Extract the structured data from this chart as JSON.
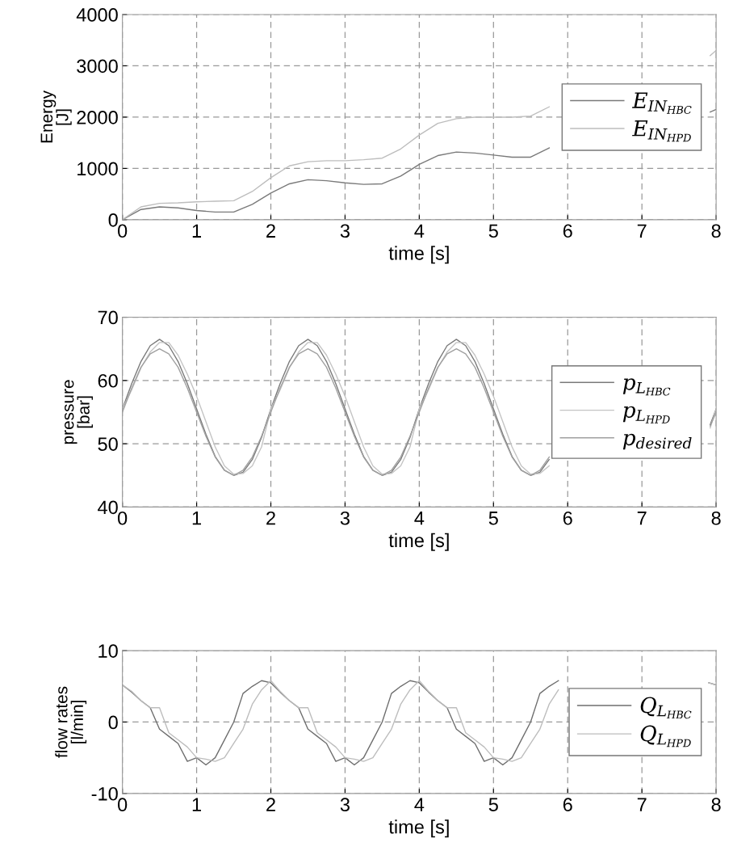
{
  "chart_data": [
    {
      "type": "line",
      "xlabel": "time [s]",
      "ylabel": "Energy\n[J]",
      "xlim": [
        0,
        8
      ],
      "ylim": [
        0,
        4000
      ],
      "xticks": [
        0,
        1,
        2,
        3,
        4,
        5,
        6,
        7,
        8
      ],
      "yticks": [
        0,
        1000,
        2000,
        3000,
        4000
      ],
      "grid": true,
      "legend": "right",
      "line_style": "solid",
      "x": [
        0,
        0.25,
        0.5,
        0.75,
        1,
        1.25,
        1.5,
        1.75,
        2,
        2.25,
        2.5,
        2.75,
        3,
        3.25,
        3.5,
        3.75,
        4,
        4.25,
        4.5,
        4.75,
        5,
        5.25,
        5.5,
        5.75,
        6,
        7.92,
        8
      ],
      "series": [
        {
          "name": "E$_{IN}$$_{HBC}$",
          "color": "#7a7a7a",
          "values": [
            0,
            200,
            250,
            230,
            180,
            150,
            150,
            300,
            520,
            700,
            780,
            760,
            720,
            690,
            700,
            850,
            1080,
            1250,
            1320,
            1300,
            1260,
            1220,
            1220,
            1400,
            null,
            2100,
            2150
          ]
        },
        {
          "name": "E$_{IN}$$_{HPD}$",
          "color": "#bdbdbd",
          "values": [
            0,
            250,
            320,
            330,
            350,
            360,
            370,
            550,
            820,
            1050,
            1130,
            1150,
            1150,
            1170,
            1200,
            1380,
            1650,
            1880,
            1970,
            2000,
            2000,
            2000,
            2020,
            2200,
            null,
            3200,
            3300
          ]
        }
      ]
    },
    {
      "type": "line",
      "xlabel": "time [s]",
      "ylabel": "pressure\n[bar]",
      "xlim": [
        0,
        8
      ],
      "ylim": [
        40,
        70
      ],
      "xticks": [
        0,
        1,
        2,
        3,
        4,
        5,
        6,
        7,
        8
      ],
      "yticks": [
        40,
        50,
        60,
        70
      ],
      "grid": true,
      "legend": "right",
      "line_style": "solid",
      "x": [
        0,
        0.125,
        0.25,
        0.375,
        0.5,
        0.625,
        0.75,
        0.875,
        1,
        1.125,
        1.25,
        1.375,
        1.5,
        1.625,
        1.75,
        1.875,
        2,
        2.125,
        2.25,
        2.375,
        2.5,
        2.625,
        2.75,
        2.875,
        3,
        3.125,
        3.25,
        3.375,
        3.5,
        3.625,
        3.75,
        3.875,
        4,
        4.125,
        4.25,
        4.375,
        4.5,
        4.625,
        4.75,
        4.875,
        5,
        5.125,
        5.25,
        5.375,
        5.5,
        5.625,
        5.75,
        5.9,
        7.92,
        8
      ],
      "series": [
        {
          "name": "p$_{L}$$_{HBC}$",
          "color": "#7a7a7a",
          "values": [
            55.5,
            59.5,
            63,
            65.5,
            66.5,
            65.5,
            63,
            59.5,
            55.5,
            51.5,
            48,
            45.8,
            45,
            45.5,
            47.5,
            51,
            55.5,
            59.5,
            63,
            65.5,
            66.5,
            65.5,
            63,
            59.5,
            55.5,
            51.5,
            48,
            45.8,
            45,
            45.5,
            47.5,
            51,
            55.5,
            59.5,
            63,
            65.5,
            66.5,
            65.5,
            63,
            59.5,
            55.5,
            51.5,
            48,
            45.8,
            45,
            45.5,
            47.5,
            null,
            53,
            55.5
          ]
        },
        {
          "name": "p$_{L}$$_{HPD}$",
          "color": "#c4c4c4",
          "values": [
            55.5,
            58.5,
            62,
            64.5,
            66,
            66,
            64,
            61,
            57.5,
            53.5,
            49.5,
            46.5,
            45.2,
            45.3,
            46.5,
            49.5,
            55.5,
            58.5,
            62,
            64.5,
            66,
            66,
            64,
            61,
            57.5,
            53.5,
            49.5,
            46.5,
            45.2,
            45.3,
            46.5,
            49.5,
            55.5,
            58.5,
            62,
            64.5,
            66,
            66,
            64,
            61,
            57.5,
            53.5,
            49.5,
            46.5,
            45.2,
            45.3,
            46.5,
            null,
            52.5,
            55.5
          ]
        },
        {
          "name": "p$_{desired}$",
          "color": "#a0a0a0",
          "values": [
            55,
            58.8,
            62.1,
            64.2,
            65,
            64.2,
            62.1,
            58.8,
            55,
            51.2,
            47.9,
            45.8,
            45,
            45.8,
            47.9,
            51.2,
            55,
            58.8,
            62.1,
            64.2,
            65,
            64.2,
            62.1,
            58.8,
            55,
            51.2,
            47.9,
            45.8,
            45,
            45.8,
            47.9,
            51.2,
            55,
            58.8,
            62.1,
            64.2,
            65,
            64.2,
            62.1,
            58.8,
            55,
            51.2,
            47.9,
            45.8,
            45,
            45.8,
            47.9,
            null,
            52.8,
            55
          ]
        }
      ]
    },
    {
      "type": "line",
      "xlabel": "time [s]",
      "ylabel": "flow rates\n[l/min]",
      "xlim": [
        0,
        8
      ],
      "ylim": [
        -10,
        10
      ],
      "xticks": [
        0,
        1,
        2,
        3,
        4,
        5,
        6,
        7,
        8
      ],
      "yticks": [
        -10,
        0,
        10
      ],
      "grid": true,
      "legend": "right",
      "line_style": "solid",
      "x": [
        0,
        0.125,
        0.25,
        0.375,
        0.5,
        0.625,
        0.75,
        0.875,
        1,
        1.125,
        1.25,
        1.375,
        1.5,
        1.625,
        1.75,
        1.875,
        2,
        2.125,
        2.25,
        2.375,
        2.5,
        2.625,
        2.75,
        2.875,
        3,
        3.125,
        3.25,
        3.375,
        3.5,
        3.625,
        3.75,
        3.875,
        4,
        4.125,
        4.25,
        4.375,
        4.5,
        4.625,
        4.75,
        4.875,
        5,
        5.125,
        5.25,
        5.375,
        5.5,
        5.625,
        5.75,
        5.875,
        6,
        7.9,
        8
      ],
      "series": [
        {
          "name": "Q$_{L}$$_{HBC}$",
          "color": "#6e6e6e",
          "values": [
            5.2,
            4.2,
            3,
            2,
            -1,
            -2,
            -3,
            -5.5,
            -5,
            -6,
            -5,
            -2.5,
            0,
            4,
            5,
            5.8,
            5.5,
            4.2,
            3,
            2,
            -1,
            -2,
            -3,
            -5.5,
            -5,
            -6,
            -5,
            -2.5,
            0,
            4,
            5,
            5.8,
            5.5,
            4.2,
            3,
            2,
            -1,
            -2,
            -3,
            -5.5,
            -5,
            -6,
            -5,
            -2.5,
            0,
            4,
            5,
            5.8,
            null,
            5.5,
            5.2
          ]
        },
        {
          "name": "Q$_{L}$$_{HPD}$",
          "color": "#bdbdbd",
          "values": [
            5.2,
            4.3,
            3,
            2,
            2,
            -1.5,
            -2.5,
            -3.5,
            -5,
            -5.2,
            -5.5,
            -5,
            -3,
            -1,
            2.5,
            4.5,
            5.8,
            4.3,
            3,
            2,
            2,
            -1.5,
            -2.5,
            -3.5,
            -5,
            -5.2,
            -5.5,
            -5,
            -3,
            -1,
            2.5,
            4.5,
            5.8,
            4.3,
            3,
            2,
            2,
            -1.5,
            -2.5,
            -3.5,
            -5,
            -5.2,
            -5.5,
            -5,
            -3,
            -1,
            2.5,
            4.5,
            null,
            5.5,
            5.2
          ]
        }
      ]
    }
  ]
}
